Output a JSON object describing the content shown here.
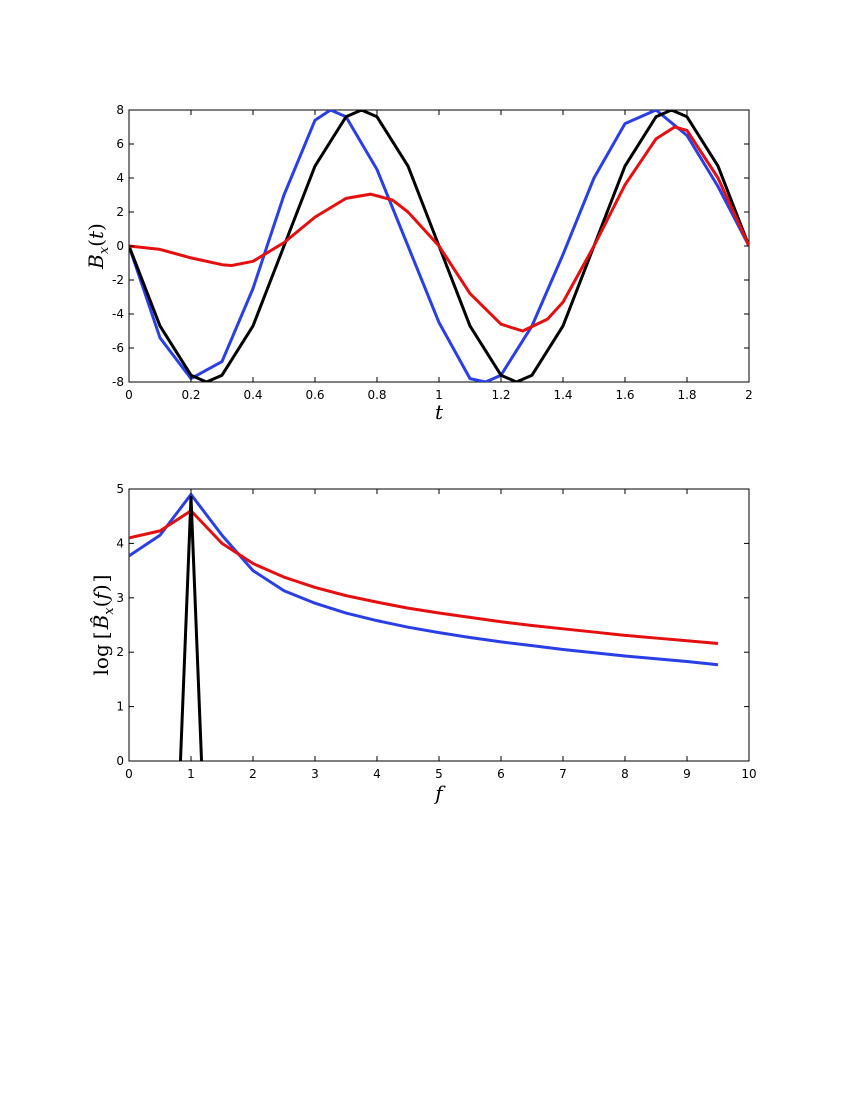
{
  "chart_data": [
    {
      "type": "line",
      "xlabel": "t",
      "ylabel": "B_x(t)",
      "xlim": [
        0,
        2
      ],
      "ylim": [
        -8,
        8
      ],
      "xticks": [
        "0",
        "0.2",
        "0.4",
        "0.6",
        "0.8",
        "1",
        "1.2",
        "1.4",
        "1.6",
        "1.8",
        "2"
      ],
      "yticks": [
        "-8",
        "-6",
        "-4",
        "-2",
        "0",
        "2",
        "4",
        "6",
        "8"
      ],
      "grid": false,
      "series": [
        {
          "color": "#2b3fe6",
          "x": [
            0,
            0.1,
            0.2,
            0.3,
            0.4,
            0.5,
            0.6,
            0.65,
            0.7,
            0.8,
            0.9,
            1.0,
            1.1,
            1.15,
            1.2,
            1.3,
            1.4,
            1.5,
            1.6,
            1.7,
            1.8,
            1.9,
            2.0
          ],
          "y": [
            0,
            -5.4,
            -7.8,
            -6.8,
            -2.5,
            3.0,
            7.4,
            8.0,
            7.6,
            4.5,
            0.0,
            -4.5,
            -7.8,
            -8.0,
            -7.6,
            -4.7,
            -0.5,
            4.0,
            7.2,
            8.0,
            6.5,
            3.5,
            0.0
          ]
        },
        {
          "color": "#000000",
          "x": [
            0,
            0.1,
            0.2,
            0.25,
            0.3,
            0.4,
            0.5,
            0.6,
            0.7,
            0.75,
            0.8,
            0.9,
            1.0,
            1.1,
            1.2,
            1.25,
            1.3,
            1.4,
            1.5,
            1.6,
            1.7,
            1.75,
            1.8,
            1.9,
            2.0
          ],
          "y": [
            0,
            -4.7,
            -7.6,
            -8.0,
            -7.6,
            -4.7,
            0.0,
            4.7,
            7.6,
            8.0,
            7.6,
            4.7,
            0.0,
            -4.7,
            -7.6,
            -8.0,
            -7.6,
            -4.7,
            0.0,
            4.7,
            7.6,
            8.0,
            7.6,
            4.7,
            0.0
          ]
        },
        {
          "color": "#e60f0f",
          "x": [
            0,
            0.1,
            0.2,
            0.3,
            0.33,
            0.4,
            0.5,
            0.6,
            0.7,
            0.78,
            0.85,
            0.9,
            1.0,
            1.1,
            1.2,
            1.27,
            1.35,
            1.4,
            1.5,
            1.6,
            1.7,
            1.76,
            1.8,
            1.9,
            2.0
          ],
          "y": [
            0,
            -0.2,
            -0.7,
            -1.1,
            -1.15,
            -0.9,
            0.2,
            1.7,
            2.8,
            3.05,
            2.7,
            2.0,
            0.0,
            -2.8,
            -4.6,
            -5.0,
            -4.3,
            -3.3,
            0.0,
            3.6,
            6.3,
            7.0,
            6.8,
            4.0,
            0.0
          ]
        }
      ]
    },
    {
      "type": "line",
      "xlabel": "f",
      "ylabel": "log[B̂_x(f)]",
      "xlim": [
        0,
        10
      ],
      "ylim": [
        0,
        5
      ],
      "xticks": [
        "0",
        "1",
        "2",
        "3",
        "4",
        "5",
        "6",
        "7",
        "8",
        "9",
        "10"
      ],
      "yticks": [
        "0",
        "1",
        "2",
        "3",
        "4",
        "5"
      ],
      "grid": false,
      "series": [
        {
          "color": "#2b3fe6",
          "x": [
            0,
            0.5,
            1,
            1.5,
            2,
            2.5,
            3,
            3.5,
            4,
            4.5,
            5,
            5.5,
            6,
            6.5,
            7,
            7.5,
            8,
            8.5,
            9,
            9.5
          ],
          "y": [
            3.77,
            4.15,
            4.9,
            4.15,
            3.5,
            3.13,
            2.9,
            2.72,
            2.58,
            2.46,
            2.36,
            2.27,
            2.19,
            2.12,
            2.05,
            1.99,
            1.93,
            1.88,
            1.83,
            1.77
          ]
        },
        {
          "color": "#e60f0f",
          "x": [
            0,
            0.5,
            1,
            1.5,
            2,
            2.5,
            3,
            3.5,
            4,
            4.5,
            5,
            5.5,
            6,
            6.5,
            7,
            7.5,
            8,
            8.5,
            9,
            9.5
          ],
          "y": [
            4.1,
            4.23,
            4.6,
            4.0,
            3.63,
            3.38,
            3.19,
            3.04,
            2.92,
            2.81,
            2.72,
            2.64,
            2.56,
            2.49,
            2.43,
            2.37,
            2.31,
            2.26,
            2.21,
            2.16
          ]
        },
        {
          "color": "#000000",
          "x": [
            0.83,
            1.0,
            1.17
          ],
          "y": [
            0,
            4.85,
            0
          ]
        }
      ]
    }
  ]
}
